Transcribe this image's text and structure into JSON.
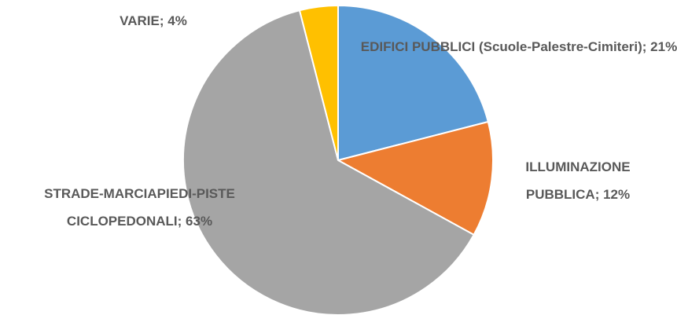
{
  "chart_data": {
    "type": "pie",
    "values": [
      21,
      12,
      63,
      4
    ],
    "value_labels": [
      "EDIFICI PUBBLICI (Scuole-Palestre-Cimiteri);  21%",
      "ILLUMINAZIONE PUBBLICA; 12%",
      "STRADE-MARCIAPIEDI-PISTE CICLOPEDONALI; 63%",
      "VARIE; 4%"
    ],
    "colors": [
      "#5b9bd5",
      "#ed7d31",
      "#a5a5a5",
      "#ffc000"
    ]
  }
}
